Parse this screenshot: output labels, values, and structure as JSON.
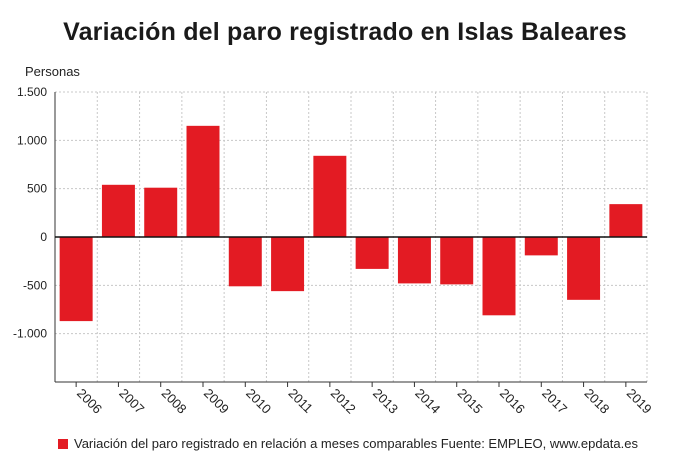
{
  "chart_data": {
    "type": "bar",
    "title": "Variación del paro registrado en Islas Baleares",
    "ylabel": "Personas",
    "xlabel": "",
    "categories": [
      "2006",
      "2007",
      "2008",
      "2009",
      "2010",
      "2011",
      "2012",
      "2013",
      "2014",
      "2015",
      "2016",
      "2017",
      "2018",
      "2019"
    ],
    "series": [
      {
        "name": "Variación del paro registrado en relación a meses comparables",
        "values": [
          -870,
          540,
          510,
          1150,
          -510,
          -560,
          840,
          -330,
          -480,
          -490,
          -810,
          -190,
          -650,
          340
        ]
      }
    ],
    "ylim": [
      -1500,
      1500
    ],
    "yticks": [
      1500,
      1000,
      500,
      0,
      -500,
      -1000
    ],
    "ytick_labels": [
      "1.500",
      "1.000",
      "500",
      "0",
      "-500",
      "-1.000"
    ],
    "grid": true,
    "legend_position": "bottom-left",
    "bar_color": "#e31b23",
    "source": "Fuente: EMPLEO, www.epdata.es"
  }
}
